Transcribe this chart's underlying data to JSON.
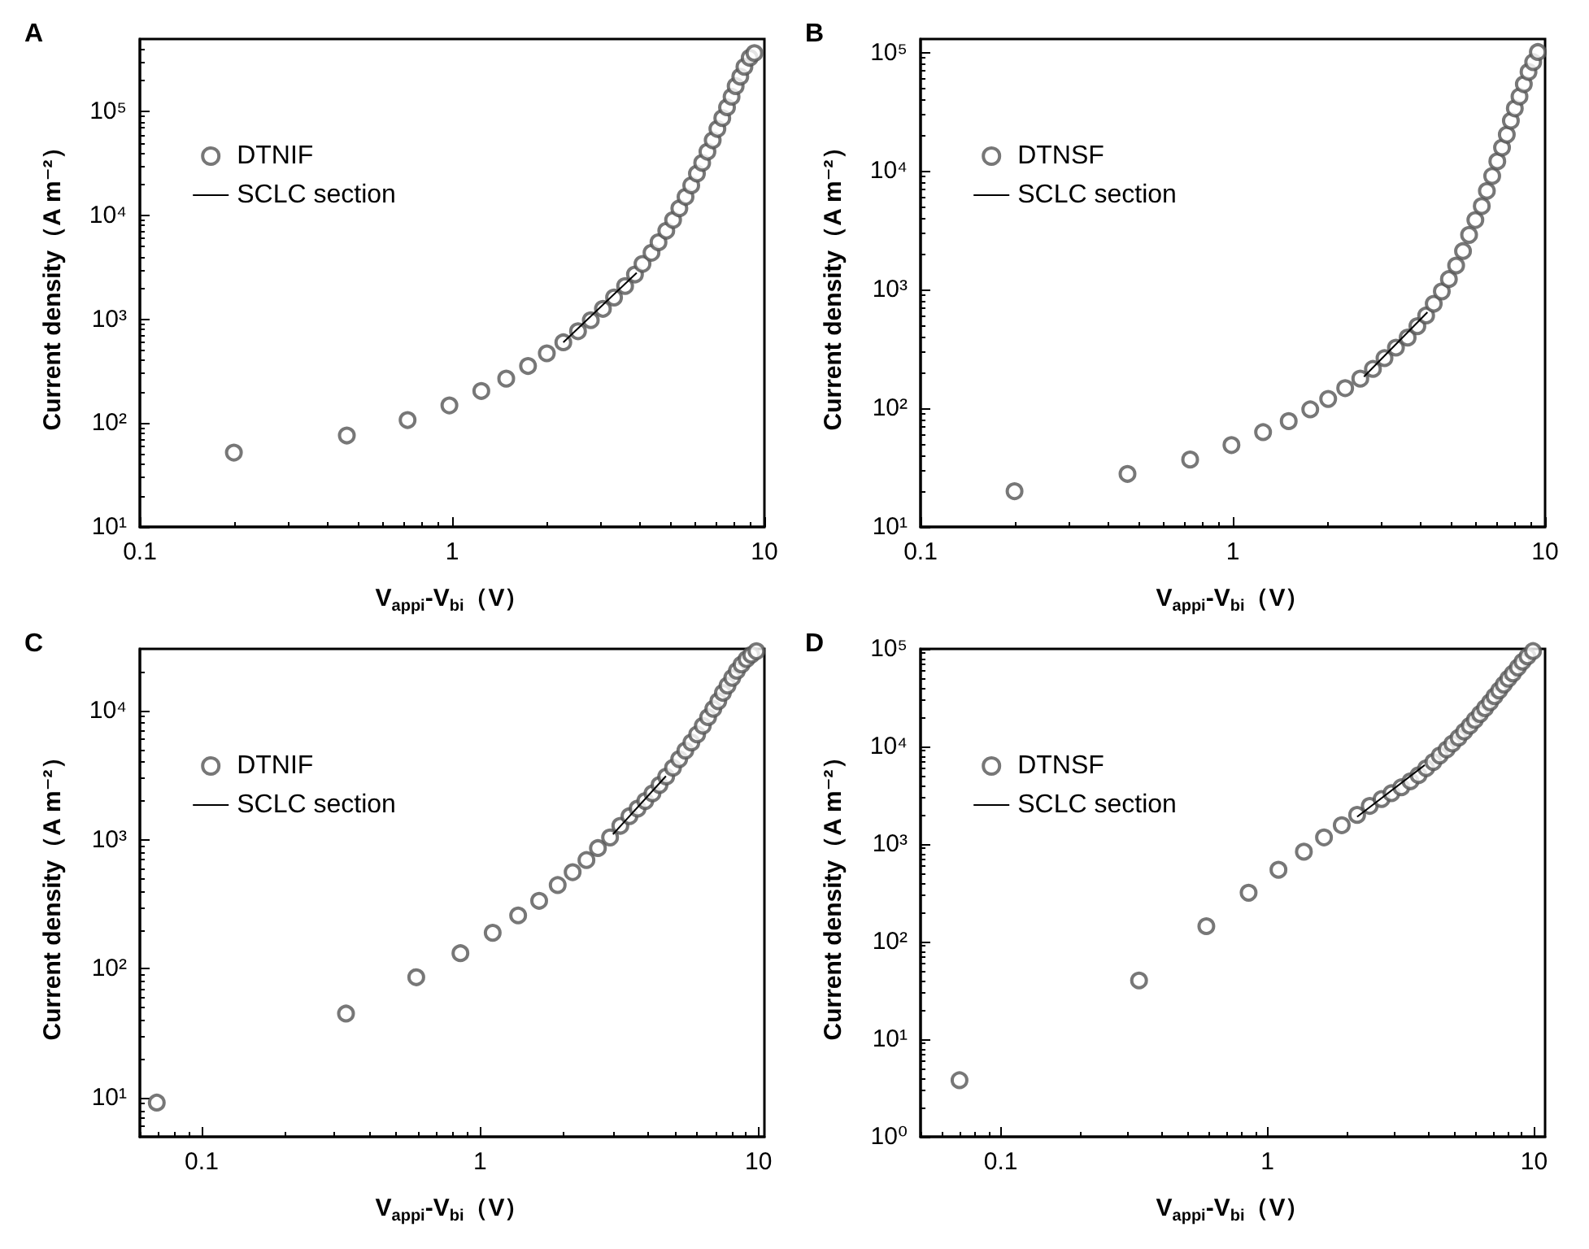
{
  "chart_data": [
    {
      "type": "scatter",
      "title": "A",
      "xlabel": "V$_{appi}$-V$_{bi}$（V）",
      "ylabel": "Current density（A m⁻²）",
      "log": "xy",
      "legend": "top left",
      "marker": "circle",
      "xlim": [
        0.1,
        10
      ],
      "xticks": [
        0.1,
        1,
        10
      ],
      "ylim": [
        10,
        500000
      ],
      "yticks": [
        {
          "value": 10,
          "label": "10¹"
        },
        {
          "value": 100,
          "label": "10²"
        },
        {
          "value": 1000,
          "label": "10³"
        },
        {
          "value": 10000,
          "label": "10⁴"
        },
        {
          "value": 100000,
          "label": "10⁵"
        }
      ],
      "series": [
        {
          "name": "DTNIF",
          "color": "#555555",
          "x": [
            0.2,
            0.46,
            0.72,
            0.98,
            1.24,
            1.49,
            1.75,
            2.01,
            2.27,
            2.53,
            2.78,
            3.04,
            3.3,
            3.58,
            3.85,
            4.07,
            4.35,
            4.58,
            4.85,
            5.1,
            5.34,
            5.59,
            5.83,
            6.08,
            6.32,
            6.57,
            6.83,
            7.07,
            7.33,
            7.59,
            7.85,
            8.09,
            8.37,
            8.63,
            8.97,
            9.29
          ],
          "values": [
            52,
            76,
            107,
            148,
            204,
            268,
            355,
            470,
            600,
            767,
            980,
            1260,
            1620,
            2090,
            2700,
            3410,
            4370,
            5520,
            7120,
            9040,
            11700,
            15100,
            19500,
            25300,
            32100,
            41100,
            52900,
            68100,
            86600,
            110000,
            139000,
            176000,
            217000,
            270000,
            330000,
            366000
          ]
        },
        {
          "name": "SCLC section",
          "type": "line",
          "marker": "none",
          "color": "#000000",
          "x": [
            2.27,
            3.9
          ],
          "values": [
            600,
            2800
          ]
        }
      ]
    },
    {
      "type": "scatter",
      "title": "B",
      "xlabel": "V$_{appi}$-V$_{bi}$（V）",
      "ylabel": "Current density（A m⁻²）",
      "log": "xy",
      "legend": "top left",
      "marker": "circle",
      "xlim": [
        0.1,
        10
      ],
      "xticks": [
        0.1,
        1,
        10
      ],
      "ylim": [
        10,
        130000
      ],
      "yticks": [
        {
          "value": 10,
          "label": "10¹"
        },
        {
          "value": 100,
          "label": "10²"
        },
        {
          "value": 1000,
          "label": "10³"
        },
        {
          "value": 10000,
          "label": "10⁴"
        },
        {
          "value": 100000,
          "label": "10⁵"
        }
      ],
      "series": [
        {
          "name": "DTNSF",
          "color": "#555555",
          "x": [
            0.2,
            0.46,
            0.73,
            0.99,
            1.25,
            1.51,
            1.77,
            2.02,
            2.29,
            2.56,
            2.81,
            3.06,
            3.33,
            3.63,
            3.9,
            4.16,
            4.4,
            4.67,
            4.92,
            5.19,
            5.46,
            5.71,
            5.98,
            6.27,
            6.51,
            6.77,
            7.03,
            7.28,
            7.54,
            7.77,
            8.0,
            8.28,
            8.55,
            8.85,
            9.16,
            9.48
          ],
          "values": [
            20,
            28,
            37,
            49,
            63,
            78,
            98,
            120,
            148,
            178,
            215,
            265,
            325,
            395,
            493,
            607,
            762,
            968,
            1230,
            1600,
            2120,
            2900,
            3870,
            5080,
            6810,
            9100,
            12100,
            15800,
            20300,
            26600,
            33800,
            42600,
            54100,
            68700,
            83000,
            101000
          ]
        },
        {
          "name": "SCLC section",
          "type": "line",
          "marker": "none",
          "color": "#000000",
          "x": [
            2.63,
            4.2
          ],
          "values": [
            185,
            646
          ]
        }
      ]
    },
    {
      "type": "scatter",
      "title": "C",
      "xlabel": "V$_{appi}$-V$_{bi}$（V）",
      "ylabel": "Current density（A m⁻²）",
      "log": "xy",
      "legend": "top left",
      "marker": "circle",
      "xlim": [
        0.06,
        10.5
      ],
      "xticks": [
        0.1,
        1,
        10
      ],
      "ylim": [
        5,
        30000
      ],
      "yticks": [
        {
          "value": 10,
          "label": "10¹"
        },
        {
          "value": 100,
          "label": "10²"
        },
        {
          "value": 1000,
          "label": "10³"
        },
        {
          "value": 10000,
          "label": "10⁴"
        }
      ],
      "series": [
        {
          "name": "DTNIF",
          "color": "#555555",
          "x": [
            0.069,
            0.33,
            0.59,
            0.85,
            1.11,
            1.37,
            1.63,
            1.9,
            2.15,
            2.41,
            2.65,
            2.93,
            3.19,
            3.44,
            3.68,
            3.92,
            4.16,
            4.41,
            4.66,
            4.93,
            5.19,
            5.46,
            5.74,
            6.02,
            6.31,
            6.59,
            6.88,
            7.17,
            7.45,
            7.74,
            8.05,
            8.36,
            8.69,
            9.06,
            9.42,
            9.83
          ],
          "values": [
            9.2,
            45,
            86,
            132,
            190,
            259,
            336,
            445,
            560,
            695,
            860,
            1040,
            1280,
            1520,
            1740,
            1990,
            2280,
            2650,
            3080,
            3600,
            4200,
            4890,
            5650,
            6530,
            7620,
            8880,
            10300,
            11800,
            13700,
            15600,
            17900,
            20300,
            22700,
            25000,
            27000,
            28800
          ]
        },
        {
          "name": "SCLC section",
          "type": "line",
          "marker": "none",
          "color": "#000000",
          "x": [
            3.0,
            4.65
          ],
          "values": [
            1100,
            3100
          ]
        }
      ]
    },
    {
      "type": "scatter",
      "title": "D",
      "xlabel": "V$_{appi}$-V$_{bi}$（V）",
      "ylabel": "Current density（A m⁻²）",
      "log": "xy",
      "legend": "top left",
      "marker": "circle",
      "xlim": [
        0.05,
        11
      ],
      "xticks": [
        0.1,
        1,
        10
      ],
      "ylim": [
        1,
        100000
      ],
      "yticks": [
        {
          "value": 1,
          "label": "10⁰"
        },
        {
          "value": 10,
          "label": "10¹"
        },
        {
          "value": 100,
          "label": "10²"
        },
        {
          "value": 1000,
          "label": "10³"
        },
        {
          "value": 10000,
          "label": "10⁴"
        },
        {
          "value": 100000,
          "label": "10⁵"
        }
      ],
      "series": [
        {
          "name": "DTNSF",
          "color": "#555555",
          "x": [
            0.07,
            0.33,
            0.59,
            0.85,
            1.1,
            1.37,
            1.63,
            1.9,
            2.17,
            2.42,
            2.68,
            2.92,
            3.18,
            3.44,
            3.69,
            3.94,
            4.19,
            4.43,
            4.7,
            4.94,
            5.21,
            5.47,
            5.74,
            6.0,
            6.27,
            6.55,
            6.84,
            7.11,
            7.4,
            7.7,
            8.01,
            8.33,
            8.7,
            9.05,
            9.45,
            9.91
          ],
          "values": [
            3.8,
            40,
            144,
            317,
            545,
            835,
            1170,
            1560,
            1990,
            2460,
            2890,
            3320,
            3820,
            4400,
            5080,
            5980,
            6930,
            8080,
            9300,
            10700,
            12300,
            14200,
            16300,
            18700,
            21500,
            24700,
            28400,
            32700,
            37500,
            43100,
            49500,
            56000,
            64500,
            73900,
            83700,
            95000
          ]
        },
        {
          "name": "SCLC section",
          "type": "line",
          "marker": "none",
          "color": "#000000",
          "x": [
            2.17,
            3.89
          ],
          "values": [
            1900,
            6450
          ]
        }
      ]
    }
  ]
}
